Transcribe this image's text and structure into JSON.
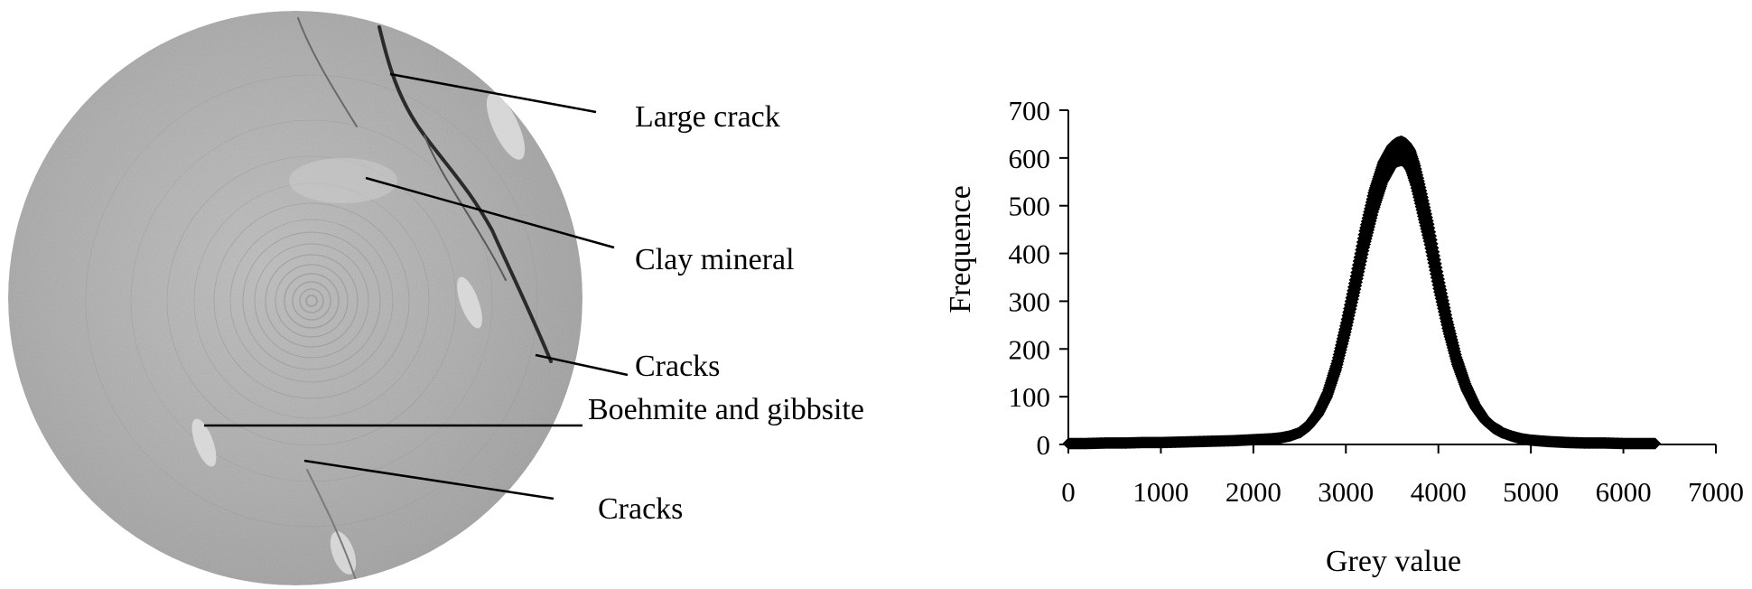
{
  "ct_panel": {
    "annotations": [
      {
        "id": "large-crack",
        "text": "Large crack"
      },
      {
        "id": "clay-mineral",
        "text": "Clay mineral"
      },
      {
        "id": "cracks-1",
        "text": "Cracks"
      },
      {
        "id": "boehmite",
        "text": "Boehmite and gibbsite"
      },
      {
        "id": "cracks-2",
        "text": "Cracks"
      }
    ]
  },
  "chart_data": {
    "type": "scatter",
    "title": "",
    "xlabel": "Grey value",
    "ylabel": "Frequence",
    "xlim": [
      0,
      7000
    ],
    "ylim": [
      0,
      700
    ],
    "x_ticks": [
      0,
      1000,
      2000,
      3000,
      4000,
      5000,
      6000,
      7000
    ],
    "y_ticks": [
      0,
      100,
      200,
      300,
      400,
      500,
      600,
      700
    ],
    "grid": false,
    "legend": "none",
    "marker": "diamond",
    "color": "#000000",
    "series": [
      {
        "x": [
          0,
          200,
          400,
          600,
          800,
          1000,
          1200,
          1400,
          1600,
          1800,
          2000,
          2200,
          2300,
          2400,
          2500,
          2600,
          2700,
          2800,
          2900,
          3000,
          3100,
          3200,
          3300,
          3400,
          3500,
          3550,
          3600,
          3650,
          3700,
          3750,
          3800,
          3900,
          4000,
          4100,
          4200,
          4300,
          4400,
          4500,
          4600,
          4700,
          4800,
          4900,
          5000,
          5200,
          5400,
          5600,
          5800,
          6000,
          6200,
          6350
        ],
        "y": [
          2,
          2,
          3,
          3,
          4,
          4,
          5,
          6,
          7,
          8,
          10,
          12,
          14,
          18,
          25,
          40,
          65,
          105,
          165,
          245,
          335,
          430,
          510,
          570,
          605,
          612,
          615,
          610,
          595,
          565,
          525,
          440,
          340,
          250,
          175,
          120,
          80,
          52,
          35,
          24,
          17,
          12,
          9,
          6,
          4,
          3,
          3,
          2,
          2,
          2
        ]
      }
    ]
  }
}
